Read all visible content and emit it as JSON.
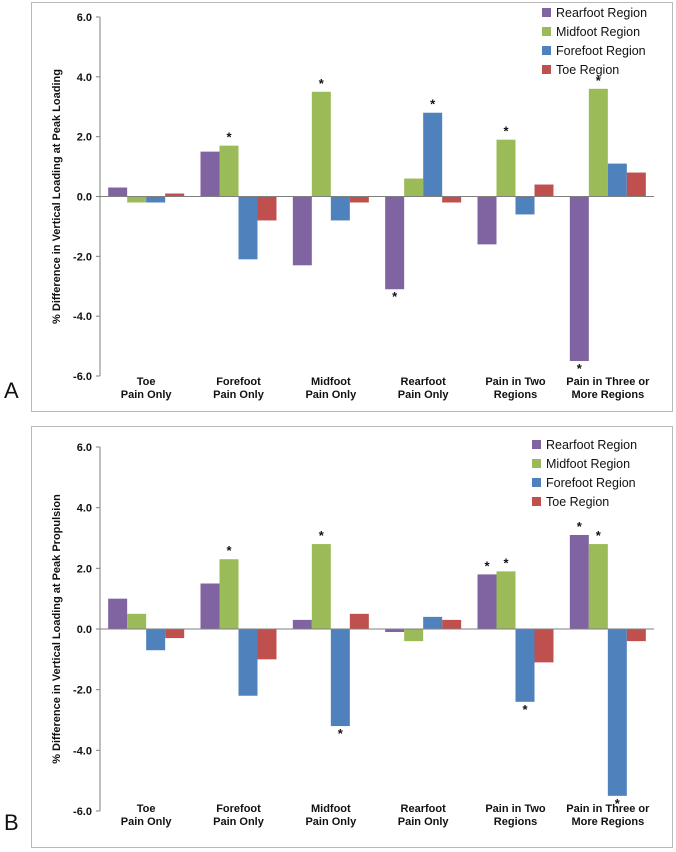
{
  "panels": [
    {
      "letter": "A",
      "chart_data": {
        "type": "bar",
        "title": "",
        "xlabel": "",
        "ylabel": "% Difference in  Vertical Loading at Peak Loading",
        "ylim": [
          -6,
          6
        ],
        "yticks": [
          "6.0",
          "4.0",
          "2.0",
          "0.0",
          "-2.0",
          "-4.0",
          "-6.0"
        ],
        "legend_position": "top-right",
        "categories": [
          [
            "Toe",
            "Pain Only"
          ],
          [
            "Forefoot",
            "Pain Only"
          ],
          [
            "Midfoot",
            "Pain Only"
          ],
          [
            "Rearfoot",
            "Pain Only"
          ],
          [
            "Pain in Two",
            "Regions"
          ],
          [
            "Pain in Three or",
            "More Regions"
          ]
        ],
        "series": [
          {
            "name": "Rearfoot Region",
            "color": "#8064a2",
            "values": [
              0.3,
              1.5,
              -2.3,
              -3.1,
              -1.6,
              -5.5
            ],
            "significant": [
              false,
              false,
              false,
              true,
              false,
              true
            ]
          },
          {
            "name": "Midfoot Region",
            "color": "#9bbb59",
            "values": [
              -0.2,
              1.7,
              3.5,
              0.6,
              1.9,
              3.6
            ],
            "significant": [
              false,
              true,
              true,
              false,
              true,
              true
            ]
          },
          {
            "name": "Forefoot Region",
            "color": "#4f81bd",
            "values": [
              -0.2,
              -2.1,
              -0.8,
              2.8,
              -0.6,
              1.1
            ],
            "significant": [
              false,
              false,
              false,
              true,
              false,
              false
            ]
          },
          {
            "name": "Toe Region",
            "color": "#c0504d",
            "values": [
              0.1,
              -0.8,
              -0.2,
              -0.2,
              0.4,
              0.8
            ],
            "significant": [
              false,
              false,
              false,
              false,
              false,
              false
            ]
          }
        ],
        "significance_marker": "*"
      }
    },
    {
      "letter": "B",
      "chart_data": {
        "type": "bar",
        "title": "",
        "xlabel": "",
        "ylabel": "% Difference in  Vertical Loading at Peak Propulsion",
        "ylim": [
          -6,
          6
        ],
        "yticks": [
          "6.0",
          "4.0",
          "2.0",
          "0.0",
          "-2.0",
          "-4.0",
          "-6.0"
        ],
        "legend_position": "top-right",
        "categories": [
          [
            "Toe",
            "Pain Only"
          ],
          [
            "Forefoot",
            "Pain Only"
          ],
          [
            "Midfoot",
            "Pain Only"
          ],
          [
            "Rearfoot",
            "Pain Only"
          ],
          [
            "Pain in Two",
            "Regions"
          ],
          [
            "Pain in Three or",
            "More Regions"
          ]
        ],
        "series": [
          {
            "name": "Rearfoot Region",
            "color": "#8064a2",
            "values": [
              1.0,
              1.5,
              0.3,
              -0.1,
              1.8,
              3.1
            ],
            "significant": [
              false,
              false,
              false,
              false,
              true,
              true
            ]
          },
          {
            "name": "Midfoot Region",
            "color": "#9bbb59",
            "values": [
              0.5,
              2.3,
              2.8,
              -0.4,
              1.9,
              2.8
            ],
            "significant": [
              false,
              true,
              true,
              false,
              true,
              true
            ]
          },
          {
            "name": "Forefoot Region",
            "color": "#4f81bd",
            "values": [
              -0.7,
              -2.2,
              -3.2,
              0.4,
              -2.4,
              -5.5
            ],
            "significant": [
              false,
              false,
              true,
              false,
              true,
              true
            ]
          },
          {
            "name": "Toe Region",
            "color": "#c0504d",
            "values": [
              -0.3,
              -1.0,
              0.5,
              0.3,
              -1.1,
              -0.4
            ],
            "significant": [
              false,
              false,
              false,
              false,
              false,
              false
            ]
          }
        ],
        "significance_marker": "*"
      }
    }
  ]
}
